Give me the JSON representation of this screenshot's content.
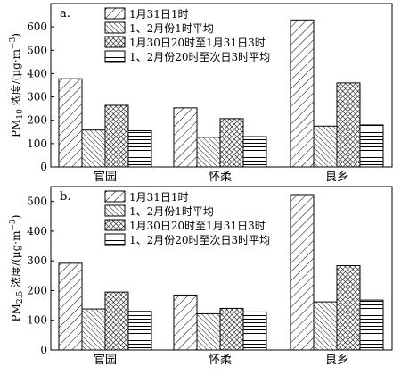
{
  "chart_data": [
    {
      "type": "bar",
      "panel_label": "a.",
      "ylabel": "PM10 浓度/(μg·m⁻³)",
      "ylabel_parts": {
        "pre": "PM",
        "sub": "10",
        "post": " 浓度/(μg·m",
        "sup": "−3",
        "end": ")"
      },
      "ylim": [
        0,
        700
      ],
      "yticks": [
        0,
        100,
        200,
        300,
        400,
        500,
        600
      ],
      "categories": [
        "官园",
        "怀柔",
        "良乡"
      ],
      "series": [
        {
          "name": "1月31日1时",
          "pattern": "diag-wide",
          "values": [
            378,
            253,
            630
          ]
        },
        {
          "name": "1、2月份1时平均",
          "pattern": "diag-dense",
          "values": [
            158,
            127,
            175
          ]
        },
        {
          "name": "1月30日20时至1月31日3时",
          "pattern": "cross",
          "values": [
            264,
            207,
            360
          ]
        },
        {
          "name": "1、2月份20时至次日3时平均",
          "pattern": "horizontal",
          "values": [
            155,
            130,
            180
          ]
        }
      ],
      "legend_position": "top-right"
    },
    {
      "type": "bar",
      "panel_label": "b.",
      "ylabel": "PM2.5 浓度/(μg·m⁻³)",
      "ylabel_parts": {
        "pre": "PM",
        "sub": "2.5",
        "post": " 浓度/(μg·m",
        "sup": "−3",
        "end": ")"
      },
      "ylim": [
        0,
        550
      ],
      "yticks": [
        0,
        100,
        200,
        300,
        400,
        500
      ],
      "categories": [
        "官园",
        "怀柔",
        "良乡"
      ],
      "series": [
        {
          "name": "1月31日1时",
          "pattern": "diag-wide",
          "values": [
            292,
            185,
            523
          ]
        },
        {
          "name": "1、2月份1时平均",
          "pattern": "diag-dense",
          "values": [
            138,
            122,
            162
          ]
        },
        {
          "name": "1月30日20时至1月31日3时",
          "pattern": "cross",
          "values": [
            195,
            140,
            284
          ]
        },
        {
          "name": "1、2月份20时至次日3时平均",
          "pattern": "horizontal",
          "values": [
            130,
            128,
            168
          ]
        }
      ],
      "legend_position": "top-right"
    }
  ]
}
